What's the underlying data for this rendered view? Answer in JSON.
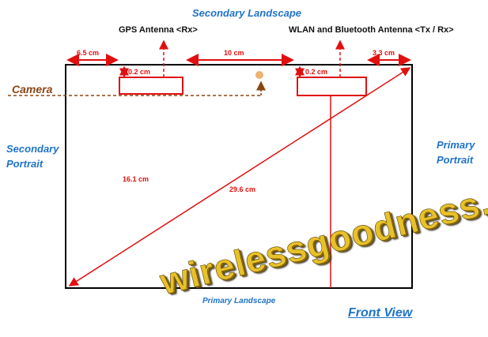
{
  "labels": {
    "secondary_landscape": "Secondary Landscape",
    "gps_antenna": "GPS Antenna <Rx>",
    "wlan_antenna": "WLAN and Bluetooth Antenna <Tx / Rx>",
    "camera": "Camera",
    "secondary_portrait_1": "Secondary",
    "secondary_portrait_2": "Portrait",
    "primary_portrait_1": "Primary",
    "primary_portrait_2": "Portrait",
    "primary_landscape": "Primary Landscape",
    "front_view": "Front View"
  },
  "dimensions": {
    "left_offset": "6.5 cm",
    "antenna_gap": "10 cm",
    "right_offset": "3.3 cm",
    "gps_edge_gap": "0.2 cm",
    "wlan_edge_gap": "0.2 cm",
    "height": "16.1 cm",
    "diagonal": "29.6 cm"
  },
  "watermark": "wirelessgoodness.com",
  "colors": {
    "outline": "#000000",
    "dimension": "#e01010",
    "label_blue": "#1f73c8",
    "camera": "#8b4513",
    "camera_dot": "#f0b070",
    "watermark": "#e8c12a"
  }
}
